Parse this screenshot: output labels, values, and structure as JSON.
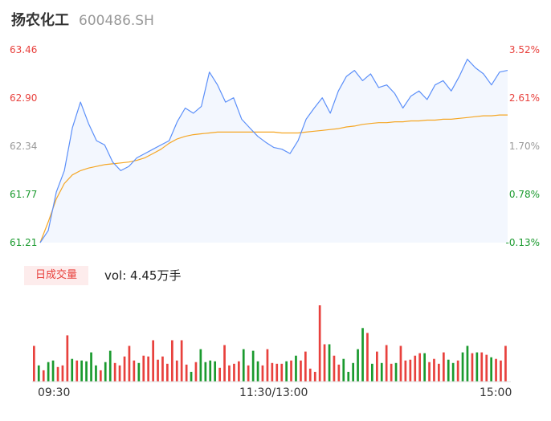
{
  "header": {
    "name": "扬农化工",
    "code": "600486.SH"
  },
  "colors": {
    "up": "#e8413d",
    "down": "#1a9a2e",
    "neutral": "#999999",
    "price_line": "#5b8ff9",
    "avg_line": "#f5a623"
  },
  "price_axis": {
    "left_labels": [
      "63.46",
      "62.90",
      "62.34",
      "61.77",
      "61.21"
    ],
    "right_labels": [
      "3.52%",
      "2.61%",
      "1.70%",
      "0.78%",
      "-0.13%"
    ]
  },
  "volume_panel": {
    "tag": "日成交量",
    "summary": "vol: 4.45万手"
  },
  "time_axis": [
    "09:30",
    "11:30/13:00",
    "15:00"
  ],
  "chart_data": [
    {
      "type": "line",
      "title": "",
      "xlabel": "",
      "ylabel": "",
      "ylim": [
        61.21,
        63.46
      ],
      "x_ticks": [
        "09:30",
        "11:30/13:00",
        "15:00"
      ],
      "series": [
        {
          "values": [
            61.21,
            61.35,
            61.8,
            62.05,
            62.55,
            62.85,
            62.6,
            62.4,
            62.35,
            62.15,
            62.05,
            62.1,
            62.2,
            62.25,
            62.3,
            62.35,
            62.4,
            62.62,
            62.78,
            62.72,
            62.8,
            63.2,
            63.05,
            62.85,
            62.9,
            62.65,
            62.55,
            62.45,
            62.38,
            62.32,
            62.3,
            62.25,
            62.4,
            62.65,
            62.78,
            62.9,
            62.72,
            62.98,
            63.15,
            63.22,
            63.1,
            63.18,
            63.02,
            63.05,
            62.95,
            62.78,
            62.92,
            62.98,
            62.88,
            63.05,
            63.1,
            62.98,
            63.15,
            63.35,
            63.25,
            63.18,
            63.05,
            63.2,
            63.22
          ]
        },
        {
          "values": [
            61.21,
            61.45,
            61.72,
            61.9,
            62.0,
            62.05,
            62.08,
            62.1,
            62.12,
            62.13,
            62.14,
            62.15,
            62.17,
            62.2,
            62.25,
            62.3,
            62.37,
            62.42,
            62.45,
            62.47,
            62.48,
            62.49,
            62.5,
            62.5,
            62.5,
            62.5,
            62.5,
            62.5,
            62.5,
            62.5,
            62.49,
            62.49,
            62.49,
            62.5,
            62.51,
            62.52,
            62.53,
            62.54,
            62.56,
            62.57,
            62.59,
            62.6,
            62.61,
            62.61,
            62.62,
            62.62,
            62.63,
            62.63,
            62.64,
            62.64,
            62.65,
            62.65,
            62.66,
            62.67,
            62.68,
            62.69,
            62.69,
            62.7,
            62.7
          ]
        }
      ]
    },
    {
      "type": "bar",
      "title": "",
      "xlabel": "",
      "ylabel": "",
      "series": [
        {
          "values": [
            44,
            20,
            14,
            24,
            26,
            18,
            20,
            57,
            28,
            26,
            26,
            25,
            36,
            20,
            14,
            24,
            38,
            23,
            20,
            31,
            44,
            26,
            23,
            32,
            31,
            51,
            27,
            31,
            22,
            51,
            26,
            51,
            21,
            12,
            24,
            40,
            24,
            26,
            25,
            17,
            45,
            20,
            22,
            25,
            40,
            20,
            38,
            25,
            20,
            40,
            23,
            22,
            22,
            25,
            26,
            32,
            26,
            37,
            16,
            12,
            94,
            46,
            46,
            32,
            21,
            28,
            12,
            23,
            40,
            66,
            60,
            22,
            37,
            23,
            45,
            22,
            23,
            44,
            26,
            27,
            32,
            35,
            35,
            24,
            28,
            22,
            36,
            27,
            23,
            26,
            36,
            44,
            35,
            36,
            36,
            33,
            30,
            28,
            26,
            44
          ]
        }
      ]
    }
  ]
}
